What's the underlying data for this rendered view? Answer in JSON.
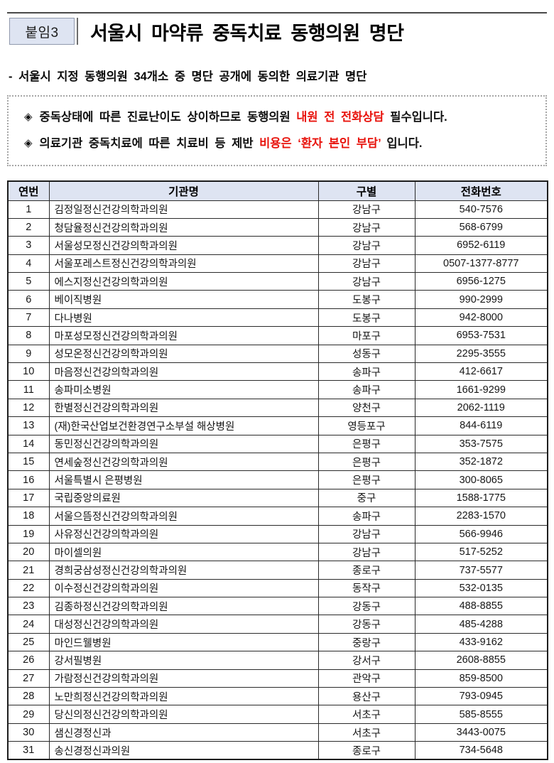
{
  "page": {
    "attachment_label": "붙임3",
    "title": "서울시 마약류 중독치료 동행의원 명단",
    "subtitle": "- 서울시 지정 동행의원 34개소 중 명단 공개에 동의한 의료기관 명단"
  },
  "notice": {
    "bullet": "◈",
    "lines": [
      {
        "segments": [
          {
            "text": "중독상태에 따른 진료난이도 상이하므로 동행의원 ",
            "red": false
          },
          {
            "text": "내원 전 전화상담",
            "red": true
          },
          {
            "text": " 필수입니다.",
            "red": false
          }
        ]
      },
      {
        "segments": [
          {
            "text": "의료기관 중독치료에 따른 치료비 등 제반 ",
            "red": false
          },
          {
            "text": "비용은 ‘환자 본인 부담’",
            "red": true
          },
          {
            "text": " 입니다.",
            "red": false
          }
        ]
      }
    ]
  },
  "table": {
    "columns": [
      "연번",
      "기관명",
      "구별",
      "전화번호"
    ],
    "rows": [
      [
        "1",
        "김정일정신건강의학과의원",
        "강남구",
        "540-7576"
      ],
      [
        "2",
        "청담율정신건강의학과의원",
        "강남구",
        "568-6799"
      ],
      [
        "3",
        "서울성모정신건강의학과의원",
        "강남구",
        "6952-6119"
      ],
      [
        "4",
        "서울포레스트정신건강의학과의원",
        "강남구",
        "0507-1377-8777"
      ],
      [
        "5",
        "에스지정신건강의학과의원",
        "강남구",
        "6956-1275"
      ],
      [
        "6",
        "베이직병원",
        "도봉구",
        "990-2999"
      ],
      [
        "7",
        "다나병원",
        "도봉구",
        "942-8000"
      ],
      [
        "8",
        "마포성모정신건강의학과의원",
        "마포구",
        "6953-7531"
      ],
      [
        "9",
        "성모온정신건강의학과의원",
        "성동구",
        "2295-3555"
      ],
      [
        "10",
        "마음정신건강의학과의원",
        "송파구",
        "412-6617"
      ],
      [
        "11",
        "송파미소병원",
        "송파구",
        "1661-9299"
      ],
      [
        "12",
        "한별정신건강의학과의원",
        "양천구",
        "2062-1119"
      ],
      [
        "13",
        "(재)한국산업보건환경연구소부설 해상병원",
        "영등포구",
        "844-6119"
      ],
      [
        "14",
        "동민정신건강의학과의원",
        "은평구",
        "353-7575"
      ],
      [
        "15",
        "연세숲정신건강의학과의원",
        "은평구",
        "352-1872"
      ],
      [
        "16",
        "서울특별시 은평병원",
        "은평구",
        "300-8065"
      ],
      [
        "17",
        "국립중앙의료원",
        "중구",
        "1588-1775"
      ],
      [
        "18",
        "서울으뜸정신건강의학과의원",
        "송파구",
        "2283-1570"
      ],
      [
        "19",
        "사유정신건강의학과의원",
        "강남구",
        "566-9946"
      ],
      [
        "20",
        "마이셀의원",
        "강남구",
        "517-5252"
      ],
      [
        "21",
        "경희궁삼성정신건강의학과의원",
        "종로구",
        "737-5577"
      ],
      [
        "22",
        "이수정신건강의학과의원",
        "동작구",
        "532-0135"
      ],
      [
        "23",
        "김종하정신건강의학과의원",
        "강동구",
        "488-8855"
      ],
      [
        "24",
        "대성정신건강의학과의원",
        "강동구",
        "485-4288"
      ],
      [
        "25",
        "마인드웰병원",
        "중랑구",
        "433-9162"
      ],
      [
        "26",
        "강서필병원",
        "강서구",
        "2608-8855"
      ],
      [
        "27",
        "가람정신건강의학과의원",
        "관악구",
        "859-8500"
      ],
      [
        "28",
        "노만희정신건강의학과의원",
        "용산구",
        "793-0945"
      ],
      [
        "29",
        "당신의정신건강의학과의원",
        "서초구",
        "585-8555"
      ],
      [
        "30",
        "샘신경정신과",
        "서초구",
        "3443-0075"
      ],
      [
        "31",
        "송신경정신과의원",
        "종로구",
        "734-5648"
      ]
    ]
  },
  "colors": {
    "accent_red": "#e8120b",
    "table_header_bg": "#dee4f2",
    "attachment_box_bg": "#dee4f2"
  }
}
